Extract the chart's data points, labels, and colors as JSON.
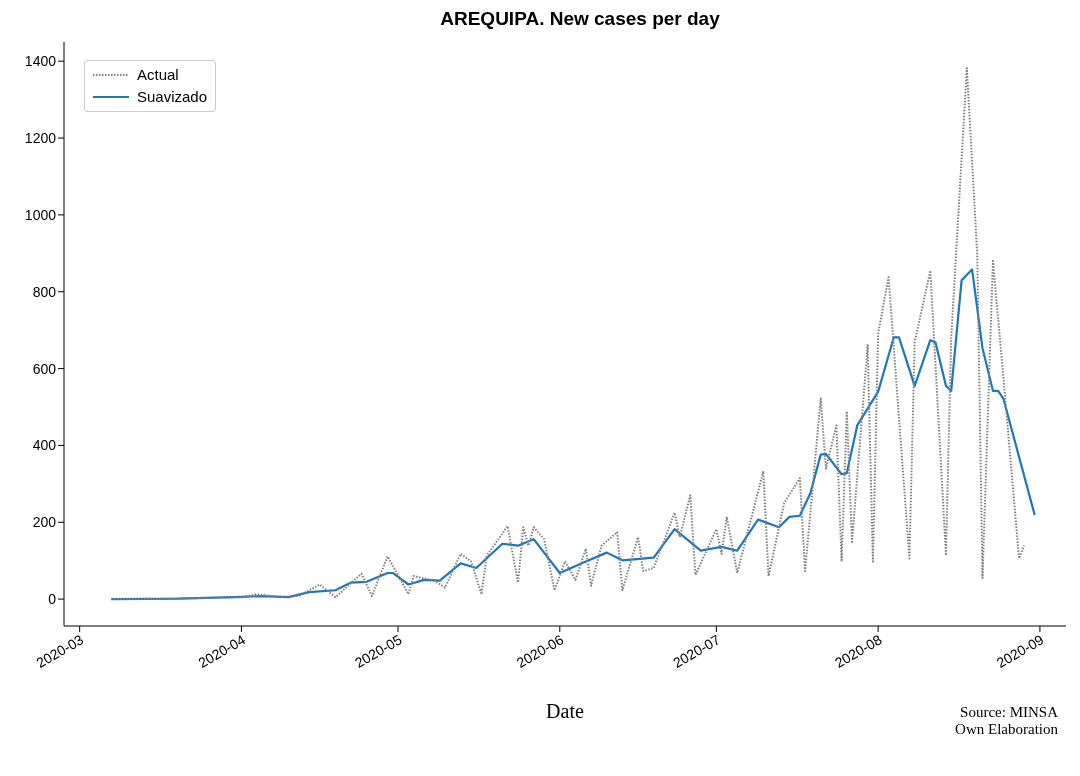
{
  "chart_data": {
    "type": "line",
    "title": "AREQUIPA. New cases per day",
    "xlabel": "Date",
    "xlim": [
      "2020-02-27",
      "2020-09-06"
    ],
    "xticks": [
      "2020-03",
      "2020-04",
      "2020-05",
      "2020-06",
      "2020-07",
      "2020-08",
      "2020-09"
    ],
    "ylim": [
      -70,
      1450
    ],
    "yticks": [
      0,
      200,
      400,
      600,
      800,
      1000,
      1200,
      1400
    ],
    "grid": false,
    "legend": "top left",
    "series": [
      {
        "name": "Actual",
        "color": "#808080",
        "line_style": "dotted",
        "x": [
          "2020-03-07",
          "2020-03-15",
          "2020-03-25",
          "2020-04-01",
          "2020-04-04",
          "2020-04-08",
          "2020-04-12",
          "2020-04-16",
          "2020-04-19",
          "2020-04-24",
          "2020-04-26",
          "2020-04-29",
          "2020-05-03",
          "2020-05-04",
          "2020-05-08",
          "2020-05-10",
          "2020-05-13",
          "2020-05-15",
          "2020-05-17",
          "2020-05-18",
          "2020-05-22",
          "2020-05-24",
          "2020-05-25",
          "2020-05-26",
          "2020-05-27",
          "2020-05-29",
          "2020-05-31",
          "2020-06-02",
          "2020-06-04",
          "2020-06-06",
          "2020-06-07",
          "2020-06-09",
          "2020-06-12",
          "2020-06-13",
          "2020-06-16",
          "2020-06-17",
          "2020-06-19",
          "2020-06-23",
          "2020-06-24",
          "2020-06-26",
          "2020-06-27",
          "2020-07-01",
          "2020-07-02",
          "2020-07-03",
          "2020-07-05",
          "2020-07-10",
          "2020-07-11",
          "2020-07-14",
          "2020-07-17",
          "2020-07-18",
          "2020-07-21",
          "2020-07-22",
          "2020-07-24",
          "2020-07-25",
          "2020-07-26",
          "2020-07-27",
          "2020-07-30",
          "2020-07-31",
          "2020-08-01",
          "2020-08-03",
          "2020-08-07",
          "2020-08-08",
          "2020-08-11",
          "2020-08-14",
          "2020-08-15",
          "2020-08-18",
          "2020-08-20",
          "2020-08-21",
          "2020-08-23",
          "2020-08-25",
          "2020-08-28",
          "2020-08-29"
        ],
        "values": [
          0,
          0,
          3,
          5,
          13,
          5,
          8,
          38,
          5,
          66,
          8,
          111,
          13,
          60,
          48,
          30,
          118,
          98,
          13,
          113,
          190,
          43,
          187,
          139,
          187,
          156,
          23,
          98,
          50,
          131,
          35,
          139,
          174,
          23,
          161,
          73,
          81,
          225,
          161,
          270,
          63,
          182,
          118,
          214,
          68,
          333,
          60,
          250,
          315,
          73,
          522,
          340,
          452,
          98,
          489,
          149,
          661,
          98,
          691,
          838,
          106,
          668,
          855,
          114,
          679,
          1382,
          896,
          55,
          880,
          578,
          106,
          139
        ]
      },
      {
        "name": "Suavizado",
        "color": "#1f77b4",
        "line_style": "solid",
        "x": [
          "2020-03-07",
          "2020-03-20",
          "2020-04-01",
          "2020-04-05",
          "2020-04-10",
          "2020-04-14",
          "2020-04-19",
          "2020-04-22",
          "2020-04-25",
          "2020-04-29",
          "2020-04-30",
          "2020-05-03",
          "2020-05-06",
          "2020-05-09",
          "2020-05-13",
          "2020-05-16",
          "2020-05-21",
          "2020-05-24",
          "2020-05-27",
          "2020-06-01",
          "2020-06-06",
          "2020-06-10",
          "2020-06-13",
          "2020-06-19",
          "2020-06-23",
          "2020-06-28",
          "2020-07-02",
          "2020-07-05",
          "2020-07-09",
          "2020-07-13",
          "2020-07-15",
          "2020-07-17",
          "2020-07-19",
          "2020-07-21",
          "2020-07-22",
          "2020-07-25",
          "2020-07-26",
          "2020-07-28",
          "2020-08-01",
          "2020-08-04",
          "2020-08-05",
          "2020-08-08",
          "2020-08-11",
          "2020-08-12",
          "2020-08-14",
          "2020-08-15",
          "2020-08-17",
          "2020-08-19",
          "2020-08-21",
          "2020-08-23",
          "2020-08-24",
          "2020-08-25",
          "2020-08-31"
        ],
        "values": [
          0,
          1,
          6,
          8,
          5,
          18,
          23,
          43,
          45,
          68,
          68,
          38,
          50,
          48,
          93,
          81,
          144,
          139,
          156,
          68,
          98,
          121,
          101,
          108,
          182,
          126,
          136,
          126,
          207,
          187,
          214,
          217,
          275,
          376,
          378,
          325,
          328,
          452,
          540,
          681,
          681,
          555,
          674,
          668,
          555,
          542,
          830,
          858,
          653,
          542,
          542,
          522,
          219
        ]
      }
    ],
    "annotations": [
      "Source: MINSA",
      "Own Elaboration"
    ]
  }
}
